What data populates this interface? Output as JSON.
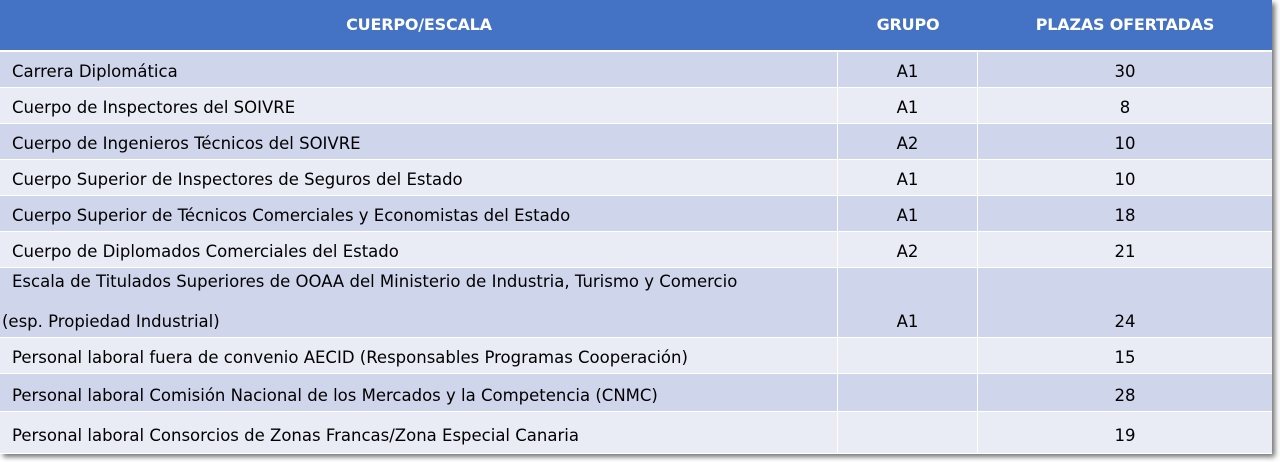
{
  "header": {
    "col1": "CUERPO/ESCALA",
    "col2": "GRUPO",
    "col3": "PLAZAS OFERTADAS"
  },
  "rows": [
    {
      "cuerpo": "Carrera Diplomática",
      "grupo": "A1",
      "plazas": "30"
    },
    {
      "cuerpo": "Cuerpo de Inspectores del SOIVRE",
      "grupo": "A1",
      "plazas": "8"
    },
    {
      "cuerpo": "Cuerpo de Ingenieros Técnicos del SOIVRE",
      "grupo": "A2",
      "plazas": "10"
    },
    {
      "cuerpo": "Cuerpo Superior de Inspectores de Seguros del Estado",
      "grupo": "A1",
      "plazas": "10"
    },
    {
      "cuerpo": "Cuerpo Superior de Técnicos Comerciales y Economistas del Estado",
      "grupo": "A1",
      "plazas": "18"
    },
    {
      "cuerpo": "Cuerpo de Diplomados Comerciales del Estado",
      "grupo": "A2",
      "plazas": "21"
    },
    {
      "cuerpo_line1": "Escala de Titulados Superiores de OOAA del Ministerio de Industria, Turismo y Comercio",
      "cuerpo_line2": "(esp. Propiedad Industrial)",
      "grupo": "A1",
      "plazas": "24"
    },
    {
      "cuerpo": "Personal laboral fuera de convenio AECID (Responsables Programas Cooperación)",
      "grupo": "",
      "plazas": "15"
    },
    {
      "cuerpo": "Personal laboral Comisión Nacional de los Mercados y la Competencia (CNMC)",
      "grupo": "",
      "plazas": "28"
    },
    {
      "cuerpo": "Personal laboral Consorcios de Zonas Francas/Zona Especial Canaria",
      "grupo": "",
      "plazas": "19"
    }
  ],
  "colors": {
    "header_bg": "#4472c4",
    "row_odd_bg": "#cfd5ea",
    "row_even_bg": "#e9ebf5"
  }
}
